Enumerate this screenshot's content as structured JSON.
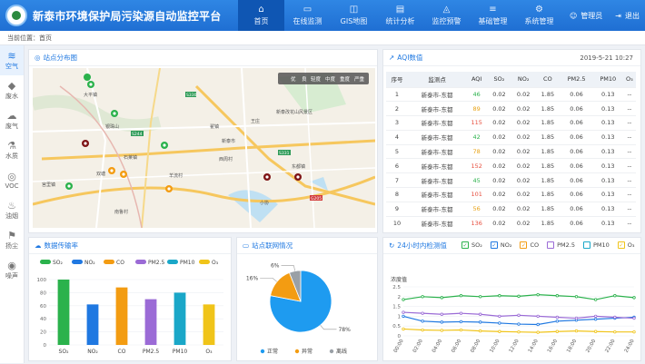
{
  "header": {
    "title": "新泰市环境保护局污染源自动监控平台",
    "nav": [
      {
        "label": "首页",
        "icon": "home-icon",
        "glyph": "⌂"
      },
      {
        "label": "在线监测",
        "icon": "monitor-icon",
        "glyph": "▭"
      },
      {
        "label": "GIS地图",
        "icon": "map-icon",
        "glyph": "◫"
      },
      {
        "label": "统计分析",
        "icon": "chart-icon",
        "glyph": "▤"
      },
      {
        "label": "监控预警",
        "icon": "alert-icon",
        "glyph": "◬"
      },
      {
        "label": "基础管理",
        "icon": "stack-icon",
        "glyph": "≡"
      },
      {
        "label": "系统管理",
        "icon": "settings-icon",
        "glyph": "⚙"
      }
    ],
    "user": "管理员",
    "logout": "退出"
  },
  "breadcrumb": "当前位置：首页",
  "sidebar": [
    {
      "label": "空气",
      "glyph": "≋",
      "icon": "air-icon"
    },
    {
      "label": "废水",
      "glyph": "💧",
      "icon": "wastewater-icon"
    },
    {
      "label": "废气",
      "glyph": "☁",
      "icon": "exhaust-gas-icon"
    },
    {
      "label": "水质",
      "glyph": "⌇",
      "icon": "water-quality-icon"
    },
    {
      "label": "VOC",
      "glyph": "◎",
      "icon": "voc-icon"
    },
    {
      "label": "油烟",
      "glyph": "♨",
      "icon": "fume-icon"
    },
    {
      "label": "扬尘",
      "glyph": "⚑",
      "icon": "dust-icon"
    },
    {
      "label": "噪声",
      "glyph": "◉",
      "icon": "noise-icon"
    }
  ],
  "map_panel": {
    "title": "站点分布图",
    "legend": [
      "优",
      "良",
      "轻度",
      "中度",
      "重度",
      "严重"
    ],
    "legend_colors": [
      "#2bb24c",
      "#f0c419",
      "#f39c12",
      "#e74c3c",
      "#9b2d8e",
      "#7e1416"
    ],
    "labels": [
      "大平镇",
      "银珠山",
      "石莱镇",
      "新泰改花山风景区",
      "新泰市",
      "王庄",
      "宫里镇",
      "羊流村",
      "小协",
      "南鲁村",
      "翟镇",
      "双塘",
      "西周村",
      "东都镇"
    ],
    "roads": [
      "S244",
      "S330",
      "S247",
      "G205",
      "S331"
    ]
  },
  "aqi_panel": {
    "title": "AQI数值",
    "date": "2019-5-21 10:27",
    "columns": [
      "序号",
      "监测点",
      "AQI",
      "SO₂",
      "NO₂",
      "CO",
      "PM2.5",
      "PM10",
      "O₃"
    ],
    "rows": [
      [
        "1",
        "新泰市-东都",
        "46",
        "0.02",
        "0.02",
        "1.85",
        "0.06",
        "0.13",
        "--"
      ],
      [
        "2",
        "新泰市-东都",
        "89",
        "0.02",
        "0.02",
        "1.85",
        "0.06",
        "0.13",
        "--"
      ],
      [
        "3",
        "新泰市-东都",
        "115",
        "0.02",
        "0.02",
        "1.85",
        "0.06",
        "0.13",
        "--"
      ],
      [
        "4",
        "新泰市-东都",
        "42",
        "0.02",
        "0.02",
        "1.85",
        "0.06",
        "0.13",
        "--"
      ],
      [
        "5",
        "新泰市-东都",
        "78",
        "0.02",
        "0.02",
        "1.85",
        "0.06",
        "0.13",
        "--"
      ],
      [
        "6",
        "新泰市-东都",
        "152",
        "0.02",
        "0.02",
        "1.85",
        "0.06",
        "0.13",
        "--"
      ],
      [
        "7",
        "新泰市-东都",
        "45",
        "0.02",
        "0.02",
        "1.85",
        "0.06",
        "0.13",
        "--"
      ],
      [
        "8",
        "新泰市-东都",
        "101",
        "0.02",
        "0.02",
        "1.85",
        "0.06",
        "0.13",
        "--"
      ],
      [
        "9",
        "新泰市-东都",
        "56",
        "0.02",
        "0.02",
        "1.85",
        "0.06",
        "0.13",
        "--"
      ],
      [
        "10",
        "新泰市-东都",
        "136",
        "0.02",
        "0.02",
        "1.85",
        "0.06",
        "0.13",
        "--"
      ]
    ],
    "aqi_colors": {
      "good": "#2bb24c",
      "moderate": "#e8a317",
      "unhealthy": "#e74c3c"
    }
  },
  "transmission_panel": {
    "title": "数据传输率"
  },
  "network_panel": {
    "title": "站点联网情况"
  },
  "trend_panel": {
    "title": "24小时内检测值",
    "legend": [
      "SO₂",
      "NO₂",
      "CO",
      "PM2.5",
      "PM10",
      "O₃"
    ],
    "legend_colors": [
      "#2bb24c",
      "#1f78e1",
      "#f39c12",
      "#9b6bd6",
      "#1aa7c8",
      "#f0c419"
    ]
  },
  "chart_data": [
    {
      "type": "bar",
      "title": "数据传输率",
      "categories": [
        "SO₂",
        "NO₂",
        "CO",
        "PM2.5",
        "PM10",
        "O₃"
      ],
      "values": [
        100,
        62,
        88,
        70,
        80,
        62
      ],
      "colors": [
        "#2bb24c",
        "#1f78e1",
        "#f39c12",
        "#9b6bd6",
        "#1aa7c8",
        "#f0c419"
      ],
      "ylim": [
        0,
        100
      ],
      "yticks": [
        0,
        20,
        40,
        60,
        80,
        100
      ]
    },
    {
      "type": "pie",
      "title": "站点联网情况",
      "categories": [
        "正常",
        "异常",
        "离线"
      ],
      "values": [
        78,
        16,
        6
      ],
      "labels": [
        "78%",
        "16%",
        "6%"
      ],
      "colors": [
        "#1e9bf0",
        "#f39c12",
        "#9aa0a6"
      ]
    },
    {
      "type": "line",
      "title": "24小时内检测值",
      "ylabel": "浓度值",
      "x": [
        "00:00",
        "02:00",
        "04:00",
        "06:00",
        "08:00",
        "10:00",
        "12:00",
        "14:00",
        "16:00",
        "18:00",
        "20:00",
        "22:00",
        "24:00"
      ],
      "ylim": [
        0,
        2.5
      ],
      "yticks": [
        0,
        0.5,
        1,
        1.5,
        2,
        2.5
      ],
      "series": [
        {
          "name": "SO₂",
          "color": "#2bb24c",
          "values": [
            1.85,
            2.0,
            1.95,
            2.05,
            2.0,
            2.05,
            2.02,
            2.1,
            2.05,
            2.0,
            1.85,
            2.05,
            1.95
          ]
        },
        {
          "name": "NO₂",
          "color": "#1f78e1",
          "values": [
            1.0,
            0.75,
            0.7,
            0.72,
            0.7,
            0.65,
            0.6,
            0.58,
            0.75,
            0.8,
            0.85,
            0.9,
            0.95
          ]
        },
        {
          "name": "PM2.5",
          "color": "#9b6bd6",
          "values": [
            1.2,
            1.15,
            1.1,
            1.15,
            1.1,
            1.0,
            1.05,
            1.0,
            0.95,
            0.9,
            1.0,
            0.95,
            0.9
          ]
        },
        {
          "name": "O₃",
          "color": "#f0c419",
          "values": [
            0.35,
            0.3,
            0.28,
            0.3,
            0.25,
            0.22,
            0.2,
            0.18,
            0.22,
            0.25,
            0.22,
            0.2,
            0.2
          ]
        }
      ]
    }
  ]
}
